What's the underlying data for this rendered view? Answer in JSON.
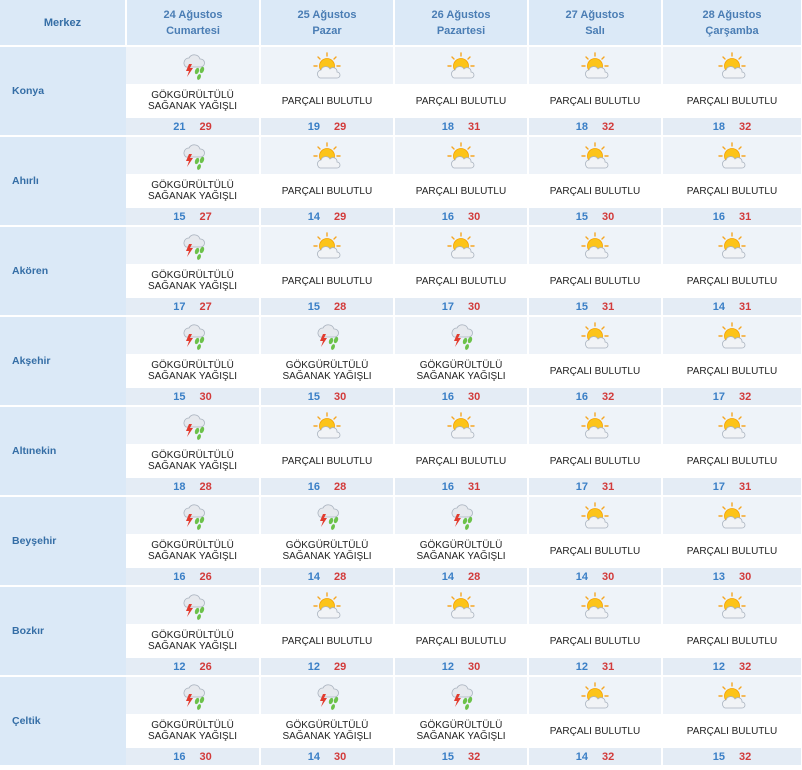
{
  "header": {
    "place_label": "Merkez",
    "days": [
      {
        "date": "24 Ağustos",
        "weekday": "Cumartesi"
      },
      {
        "date": "25 Ağustos",
        "weekday": "Pazar"
      },
      {
        "date": "26 Ağustos",
        "weekday": "Pazartesi"
      },
      {
        "date": "27 Ağustos",
        "weekday": "Salı"
      },
      {
        "date": "28 Ağustos",
        "weekday": "Çarşamba"
      }
    ]
  },
  "conditions": {
    "storm": {
      "line1": "GÖKGÜRÜLTÜLÜ",
      "line2": "SAĞANAK YAĞIŞLI",
      "icon": "thunderstorm-icon"
    },
    "partly": {
      "line1": "PARÇALI BULUTLU",
      "line2": "",
      "icon": "partly-cloudy-icon"
    }
  },
  "colors": {
    "header_bg": "#dbe9f7",
    "min_temp": "#3a7fc6",
    "max_temp": "#d23a3a"
  },
  "rows": [
    {
      "place": "Konya",
      "days": [
        {
          "cond": "storm",
          "min": "21",
          "max": "29"
        },
        {
          "cond": "partly",
          "min": "19",
          "max": "29"
        },
        {
          "cond": "partly",
          "min": "18",
          "max": "31"
        },
        {
          "cond": "partly",
          "min": "18",
          "max": "32"
        },
        {
          "cond": "partly",
          "min": "18",
          "max": "32"
        }
      ]
    },
    {
      "place": "Ahırlı",
      "days": [
        {
          "cond": "storm",
          "min": "15",
          "max": "27"
        },
        {
          "cond": "partly",
          "min": "14",
          "max": "29"
        },
        {
          "cond": "partly",
          "min": "16",
          "max": "30"
        },
        {
          "cond": "partly",
          "min": "15",
          "max": "30"
        },
        {
          "cond": "partly",
          "min": "16",
          "max": "31"
        }
      ]
    },
    {
      "place": "Akören",
      "days": [
        {
          "cond": "storm",
          "min": "17",
          "max": "27"
        },
        {
          "cond": "partly",
          "min": "15",
          "max": "28"
        },
        {
          "cond": "partly",
          "min": "17",
          "max": "30"
        },
        {
          "cond": "partly",
          "min": "15",
          "max": "31"
        },
        {
          "cond": "partly",
          "min": "14",
          "max": "31"
        }
      ]
    },
    {
      "place": "Akşehir",
      "days": [
        {
          "cond": "storm",
          "min": "15",
          "max": "30"
        },
        {
          "cond": "storm",
          "min": "15",
          "max": "30"
        },
        {
          "cond": "storm",
          "min": "16",
          "max": "30"
        },
        {
          "cond": "partly",
          "min": "16",
          "max": "32"
        },
        {
          "cond": "partly",
          "min": "17",
          "max": "32"
        }
      ]
    },
    {
      "place": "Altınekin",
      "days": [
        {
          "cond": "storm",
          "min": "18",
          "max": "28"
        },
        {
          "cond": "partly",
          "min": "16",
          "max": "28"
        },
        {
          "cond": "partly",
          "min": "16",
          "max": "31"
        },
        {
          "cond": "partly",
          "min": "17",
          "max": "31"
        },
        {
          "cond": "partly",
          "min": "17",
          "max": "31"
        }
      ]
    },
    {
      "place": "Beyşehir",
      "days": [
        {
          "cond": "storm",
          "min": "16",
          "max": "26"
        },
        {
          "cond": "storm",
          "min": "14",
          "max": "28"
        },
        {
          "cond": "storm",
          "min": "14",
          "max": "28"
        },
        {
          "cond": "partly",
          "min": "14",
          "max": "30"
        },
        {
          "cond": "partly",
          "min": "13",
          "max": "30"
        }
      ]
    },
    {
      "place": "Bozkır",
      "days": [
        {
          "cond": "storm",
          "min": "12",
          "max": "26"
        },
        {
          "cond": "partly",
          "min": "12",
          "max": "29"
        },
        {
          "cond": "partly",
          "min": "12",
          "max": "30"
        },
        {
          "cond": "partly",
          "min": "12",
          "max": "31"
        },
        {
          "cond": "partly",
          "min": "12",
          "max": "32"
        }
      ]
    },
    {
      "place": "Çeltik",
      "days": [
        {
          "cond": "storm",
          "min": "16",
          "max": "30"
        },
        {
          "cond": "storm",
          "min": "14",
          "max": "30"
        },
        {
          "cond": "storm",
          "min": "15",
          "max": "32"
        },
        {
          "cond": "partly",
          "min": "14",
          "max": "32"
        },
        {
          "cond": "partly",
          "min": "15",
          "max": "32"
        }
      ]
    }
  ]
}
